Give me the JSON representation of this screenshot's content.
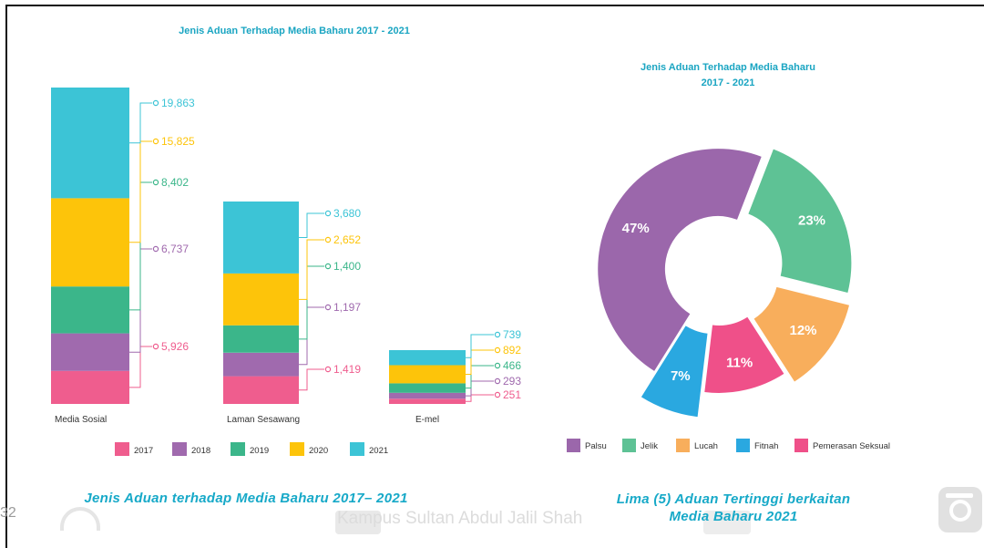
{
  "captions": {
    "left": "Jenis Aduan terhadap Media Baharu 2017– 2021",
    "right_line1": "Lima (5) Aduan Tertinggi berkaitan",
    "right_line2": "Media Baharu 2021"
  },
  "page_number": "32",
  "watermark_text": "Kampus Sultan Abdul Jalil Shah",
  "colors": {
    "2017": "#ef5d8e",
    "2018": "#a06aae",
    "2019": "#3bb68a",
    "2020": "#fdc40a",
    "2021": "#3cc4d6",
    "Palsu": "#9b67ab",
    "Jelik": "#5ec295",
    "Lucah": "#f8ae5c",
    "Fitnah": "#2aa8e0",
    "Pemerasan Seksual": "#ef5089"
  },
  "chart_data": [
    {
      "type": "bar",
      "stacked": true,
      "title": "Jenis Aduan Terhadap Media Baharu 2017 - 2021",
      "categories": [
        "Media Sosial",
        "Laman Sesawang",
        "E-mel"
      ],
      "series": [
        {
          "name": "2017",
          "values": [
            5926,
            1419,
            251
          ],
          "labels": [
            "5,926",
            "1,419",
            "251"
          ]
        },
        {
          "name": "2018",
          "values": [
            6737,
            1197,
            293
          ],
          "labels": [
            "6,737",
            "1,197",
            "293"
          ]
        },
        {
          "name": "2019",
          "values": [
            8402,
            1400,
            466
          ],
          "labels": [
            "8,402",
            "1,400",
            "466"
          ]
        },
        {
          "name": "2020",
          "values": [
            15825,
            2652,
            892
          ],
          "labels": [
            "15,825",
            "2,652",
            "892"
          ]
        },
        {
          "name": "2021",
          "values": [
            19863,
            3680,
            739
          ],
          "labels": [
            "19,863",
            "3,680",
            "739"
          ]
        }
      ],
      "legend": "bottom"
    },
    {
      "type": "pie",
      "donut": true,
      "title_line1": "Jenis Aduan Terhadap Media Baharu",
      "title_line2": "2017 - 2021",
      "labels": [
        "Palsu",
        "Jelik",
        "Lucah",
        "Pemerasan Seksual",
        "Fitnah"
      ],
      "values": [
        47,
        23,
        12,
        11,
        7
      ],
      "value_labels": [
        "47%",
        "23%",
        "12%",
        "11%",
        "7%"
      ],
      "legend_order": [
        "Palsu",
        "Jelik",
        "Lucah",
        "Fitnah",
        "Pemerasan Seksual"
      ],
      "legend": "bottom"
    }
  ]
}
